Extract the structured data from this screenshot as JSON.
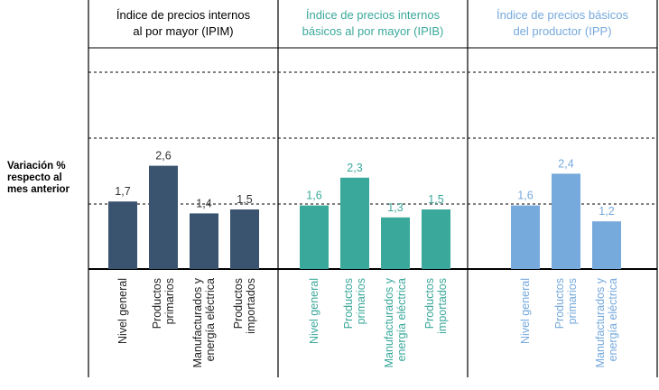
{
  "ylabel": [
    "Variación %",
    "respecto al",
    "mes anterior"
  ],
  "colors": {
    "ipim": "#3a536f",
    "ipib": "#3aa89a",
    "ipp": "#76a9dc",
    "axis": "#000000",
    "grid": "#000000",
    "value_text": "#333333"
  },
  "chart_data": [
    {
      "type": "bar",
      "id": "ipim",
      "title": [
        "Índice de precios internos",
        "al por mayor (IPIM)"
      ],
      "color_key": "ipim",
      "categories": [
        [
          "Nivel general"
        ],
        [
          "Productos",
          "primarios"
        ],
        [
          "Manufacturados y",
          "energía eléctrica"
        ],
        [
          "Productos",
          "importados"
        ]
      ],
      "values": [
        1.7,
        2.6,
        1.4,
        1.5
      ],
      "value_labels": [
        "1,7",
        "2,6",
        "1,4",
        "1,5"
      ],
      "ylim": [
        0,
        3.2
      ],
      "grid": true
    },
    {
      "type": "bar",
      "id": "ipib",
      "title": [
        "Índice de precios internos",
        "básicos al por mayor (IPIB)"
      ],
      "color_key": "ipib",
      "categories": [
        [
          "Nivel general"
        ],
        [
          "Productos",
          "primarios"
        ],
        [
          "Manufacturados y",
          "energía eléctrica"
        ],
        [
          "Productos",
          "importados"
        ]
      ],
      "values": [
        1.6,
        2.3,
        1.3,
        1.5
      ],
      "value_labels": [
        "1,6",
        "2,3",
        "1,3",
        "1,5"
      ],
      "ylim": [
        0,
        3.2
      ],
      "grid": true
    },
    {
      "type": "bar",
      "id": "ipp",
      "title": [
        "Índice de precios básicos",
        "del productor (IPP)"
      ],
      "color_key": "ipp",
      "categories": [
        [
          "Nivel general"
        ],
        [
          "Productos",
          "primarios"
        ],
        [
          "Manufacturados y",
          "energía eléctrica"
        ]
      ],
      "values": [
        1.6,
        2.4,
        1.2
      ],
      "value_labels": [
        "1,6",
        "2,4",
        "1,2"
      ],
      "ylim": [
        0,
        3.2
      ],
      "grid": true
    }
  ]
}
